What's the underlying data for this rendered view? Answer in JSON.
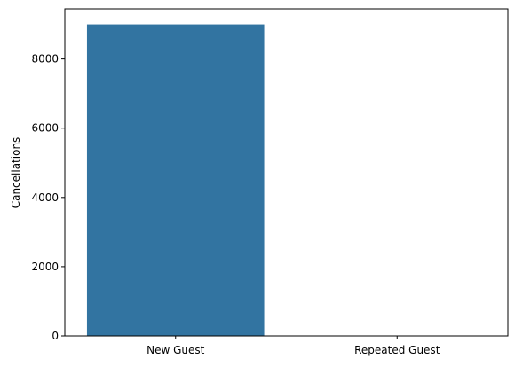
{
  "chart_data": {
    "type": "bar",
    "categories": [
      "New Guest",
      "Repeated Guest"
    ],
    "values": [
      9000,
      0
    ],
    "title": "",
    "xlabel": "",
    "ylabel": "Cancellations",
    "ylim": [
      0,
      9450
    ],
    "yticks": [
      0,
      2000,
      4000,
      6000,
      8000
    ],
    "grid": false,
    "bar_color": "#3274a1"
  }
}
